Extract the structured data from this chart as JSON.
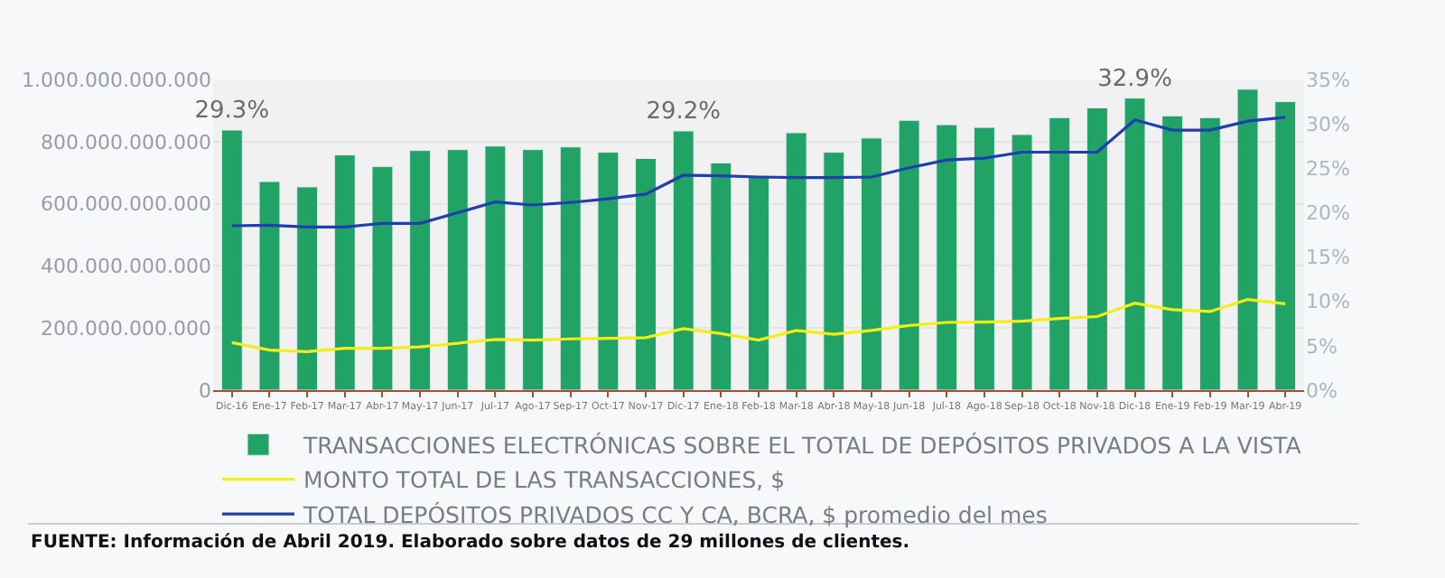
{
  "chart_data": {
    "type": "bar",
    "categories": [
      "Dic-16",
      "Ene-17",
      "Feb-17",
      "Mar-17",
      "Abr-17",
      "May-17",
      "Jun-17",
      "Jul-17",
      "Ago-17",
      "Sep-17",
      "Oct-17",
      "Nov-17",
      "Dic-17",
      "Ene-18",
      "Feb-18",
      "Mar-18",
      "Abr-18",
      "May-18",
      "Jun-18",
      "Jul-18",
      "Ago-18",
      "Sep-18",
      "Oct-18",
      "Nov-18",
      "Dic-18",
      "Ene-19",
      "Feb-19",
      "Mar-19",
      "Abr-19"
    ],
    "series": [
      {
        "name": "TRANSACCIONES ELECTRÓNICAS SOBRE EL TOTAL DE DEPÓSITOS PRIVADOS A LA VISTA",
        "axis": "y2",
        "color": "#21a366",
        "values": [
          29.3,
          23.5,
          22.9,
          26.5,
          25.2,
          27.0,
          27.1,
          27.5,
          27.1,
          27.4,
          26.8,
          26.1,
          29.2,
          25.6,
          24.0,
          29.0,
          26.8,
          28.4,
          30.4,
          29.9,
          29.6,
          28.8,
          30.7,
          31.8,
          32.9,
          30.9,
          30.7,
          33.9,
          32.5
        ],
        "value_labels": [
          "29.3%",
          null,
          null,
          null,
          null,
          null,
          null,
          null,
          null,
          null,
          null,
          null,
          "29.2%",
          null,
          null,
          null,
          null,
          null,
          null,
          null,
          null,
          null,
          null,
          null,
          "32.9%",
          null,
          null,
          null,
          null
        ]
      },
      {
        "name": "MONTO TOTAL DE LAS TRANSACCIONES, $",
        "type": "line",
        "color": "#f2ee1a",
        "values": [
          153000000000,
          129000000000,
          124000000000,
          135000000000,
          135000000000,
          139000000000,
          151000000000,
          163000000000,
          161000000000,
          165000000000,
          167000000000,
          169000000000,
          198000000000,
          182000000000,
          161000000000,
          192000000000,
          180000000000,
          192000000000,
          208000000000,
          218000000000,
          219000000000,
          222000000000,
          231000000000,
          237000000000,
          280000000000,
          259000000000,
          253000000000,
          292000000000,
          278000000000
        ]
      },
      {
        "name": "TOTAL DEPÓSITOS PRIVADOS CC Y CA, BCRA, $ promedio del mes",
        "type": "line",
        "color": "#1f3fae",
        "values": [
          529000000000,
          531000000000,
          525000000000,
          525000000000,
          537000000000,
          537000000000,
          571000000000,
          606000000000,
          596000000000,
          604000000000,
          616000000000,
          631000000000,
          692000000000,
          690000000000,
          686000000000,
          684000000000,
          684000000000,
          686000000000,
          716000000000,
          741000000000,
          747000000000,
          766000000000,
          766000000000,
          766000000000,
          870000000000,
          837000000000,
          837000000000,
          866000000000,
          878000000000
        ]
      }
    ],
    "ylim": [
      0,
      1000000000000
    ],
    "yticks": [
      0,
      {
        "value": 200000000000,
        "label": "200.000.000.000"
      },
      {
        "value": 400000000000,
        "label": "400.000.000.000"
      },
      {
        "value": 600000000000,
        "label": "600.000.000.000"
      },
      {
        "value": 800000000000,
        "label": "800.000.000.000"
      },
      {
        "value": 1000000000000,
        "label": "1.000.000.000.000"
      }
    ],
    "y2lim": [
      0,
      35
    ],
    "y2ticks": [
      {
        "value": 0,
        "label": "0%"
      },
      {
        "value": 5,
        "label": "5%"
      },
      {
        "value": 10,
        "label": "10%"
      },
      {
        "value": 15,
        "label": "15%"
      },
      {
        "value": 20,
        "label": "20%"
      },
      {
        "value": 25,
        "label": "25%"
      },
      {
        "value": 30,
        "label": "30%"
      },
      {
        "value": 35,
        "label": "35%"
      }
    ],
    "grid": "y",
    "legend": "bottom",
    "marker": "none",
    "line_style": "solid",
    "annotations": [
      "FUENTE: Información de Abril 2019. Elaborado sobre datos de 29 millones de clientes."
    ]
  }
}
